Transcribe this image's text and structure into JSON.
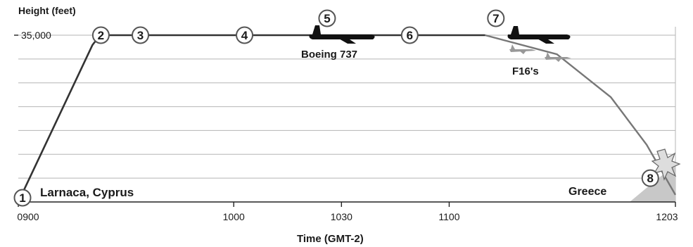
{
  "chart_data": {
    "type": "line",
    "ylabel": "Height (feet)",
    "xlabel": "Time (GMT-2)",
    "y_tick": "35,000",
    "x_ticks": [
      {
        "t": 0,
        "label": "0900"
      },
      {
        "t": 60,
        "label": "1000"
      },
      {
        "t": 90,
        "label": "1030"
      },
      {
        "t": 120,
        "label": "1100"
      },
      {
        "t": 183,
        "label": "1203"
      }
    ],
    "ylim": [
      0,
      35000
    ],
    "grid": true,
    "series": [
      {
        "points": [
          {
            "t": 0,
            "alt": 0
          },
          {
            "t": 23,
            "alt": 35000
          },
          {
            "t": 130,
            "alt": 35000
          },
          {
            "t": 150,
            "alt": 31000
          },
          {
            "t": 165,
            "alt": 22000
          },
          {
            "t": 175,
            "alt": 12000
          },
          {
            "t": 183,
            "alt": 1500
          }
        ]
      }
    ],
    "markers": [
      {
        "n": "1",
        "t": 0,
        "alt": 0
      },
      {
        "n": "2",
        "t": 23,
        "alt": 35000
      },
      {
        "n": "3",
        "t": 34,
        "alt": 35000
      },
      {
        "n": "4",
        "t": 63,
        "alt": 35000
      },
      {
        "n": "5",
        "t": 86,
        "alt": 35000
      },
      {
        "n": "6",
        "t": 109,
        "alt": 35000
      },
      {
        "n": "7",
        "t": 133,
        "alt": 35000
      },
      {
        "n": "8",
        "t": 176,
        "alt": 5000
      }
    ],
    "annotations": {
      "origin": "Larnaca, Cyprus",
      "aircraft": "Boeing 737",
      "escort": "F16's",
      "crash_site": "Greece"
    }
  }
}
